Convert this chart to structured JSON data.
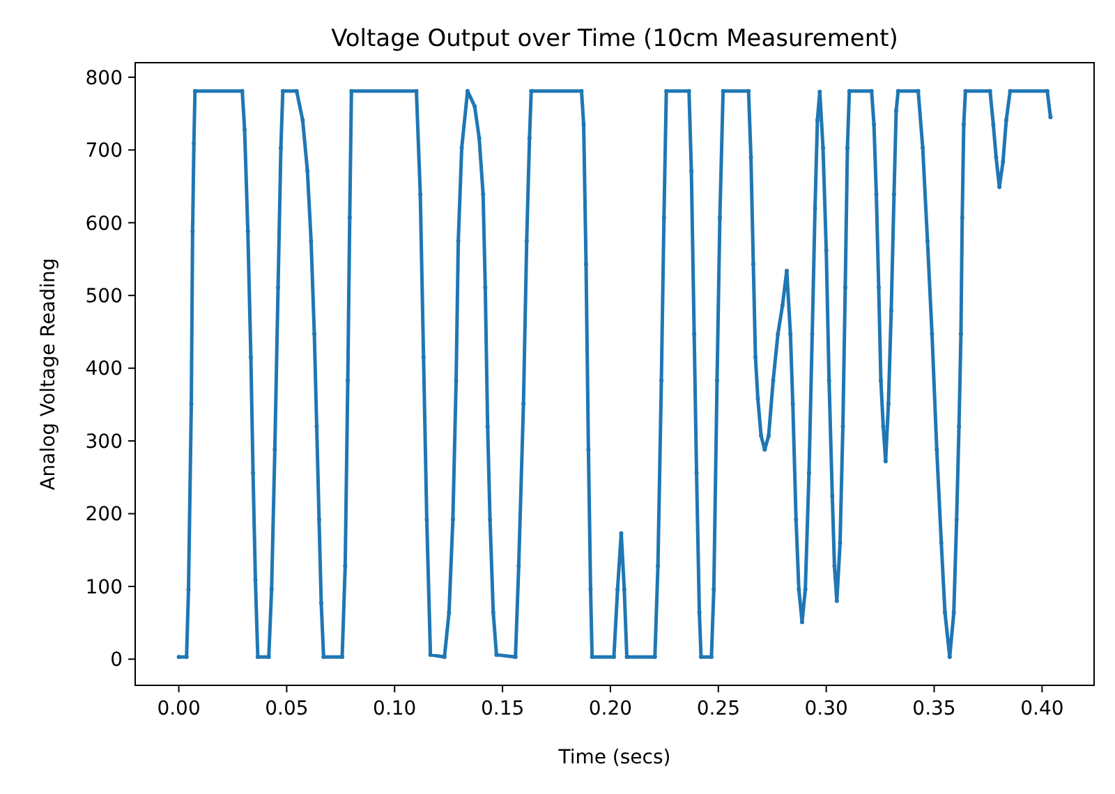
{
  "chart_data": {
    "type": "line",
    "title": "Voltage Output over Time (10cm Measurement)",
    "xlabel": "Time (secs)",
    "ylabel": "Analog Voltage Reading",
    "xlim": [
      -0.0202,
      0.4241
    ],
    "ylim": [
      -36,
      820
    ],
    "xticks": [
      {
        "value": 0,
        "label": "0.00"
      },
      {
        "value": 0.05,
        "label": "0.05"
      },
      {
        "value": 0.1,
        "label": "0.10"
      },
      {
        "value": 0.15,
        "label": "0.15"
      },
      {
        "value": 0.2,
        "label": "0.20"
      },
      {
        "value": 0.25,
        "label": "0.25"
      },
      {
        "value": 0.3,
        "label": "0.30"
      },
      {
        "value": 0.35,
        "label": "0.35"
      },
      {
        "value": 0.4,
        "label": "0.40"
      }
    ],
    "yticks": [
      0,
      100,
      200,
      300,
      400,
      500,
      600,
      700,
      800
    ],
    "marker": "circle",
    "line_style": "solid",
    "grid": false,
    "series": [
      {
        "color": "#1f77b4",
        "x": [
          0,
          0.0036,
          0.0045,
          0.0058,
          0.0064,
          0.007,
          0.0075,
          0.0294,
          0.0305,
          0.032,
          0.0334,
          0.0344,
          0.0355,
          0.0366,
          0.0417,
          0.043,
          0.0445,
          0.046,
          0.0473,
          0.0482,
          0.0546,
          0.0574,
          0.0596,
          0.0613,
          0.0628,
          0.0639,
          0.065,
          0.066,
          0.0671,
          0.0757,
          0.0771,
          0.0783,
          0.0792,
          0.08,
          0.1101,
          0.1119,
          0.1134,
          0.1149,
          0.1166,
          0.1231,
          0.1252,
          0.127,
          0.1285,
          0.1295,
          0.1311,
          0.1338,
          0.1371,
          0.1392,
          0.141,
          0.142,
          0.1431,
          0.1442,
          0.1457,
          0.1472,
          0.156,
          0.1575,
          0.1597,
          0.1612,
          0.1625,
          0.1633,
          0.1866,
          0.1876,
          0.1887,
          0.1898,
          0.1908,
          0.1915,
          0.2016,
          0.2033,
          0.205,
          0.2064,
          0.2076,
          0.2206,
          0.222,
          0.2236,
          0.2248,
          0.2259,
          0.2364,
          0.2375,
          0.2388,
          0.2399,
          0.2412,
          0.242,
          0.2468,
          0.2479,
          0.2494,
          0.2507,
          0.2522,
          0.264,
          0.2651,
          0.2662,
          0.2672,
          0.2683,
          0.2698,
          0.2715,
          0.2733,
          0.2754,
          0.2776,
          0.2797,
          0.2817,
          0.2834,
          0.2845,
          0.286,
          0.2873,
          0.2888,
          0.2903,
          0.292,
          0.2935,
          0.2948,
          0.2959,
          0.297,
          0.2985,
          0.3,
          0.3013,
          0.3028,
          0.3038,
          0.3049,
          0.3064,
          0.3077,
          0.3088,
          0.3098,
          0.3107,
          0.321,
          0.3221,
          0.3232,
          0.3243,
          0.3253,
          0.3264,
          0.3275,
          0.3288,
          0.3301,
          0.3314,
          0.3324,
          0.3333,
          0.3426,
          0.3447,
          0.3469,
          0.349,
          0.3512,
          0.3533,
          0.355,
          0.3572,
          0.3591,
          0.3604,
          0.3615,
          0.3624,
          0.363,
          0.3637,
          0.3645,
          0.3759,
          0.3774,
          0.3787,
          0.3802,
          0.3819,
          0.3834,
          0.3852,
          0.4024,
          0.4039
        ],
        "values": [
          3,
          3,
          96,
          351,
          588,
          709,
          781,
          781,
          728,
          588,
          415,
          256,
          109,
          3,
          3,
          96,
          288,
          511,
          703,
          781,
          781,
          741,
          671,
          575,
          447,
          320,
          192,
          77,
          3,
          3,
          128,
          383,
          607,
          781,
          781,
          639,
          415,
          192,
          6,
          3,
          64,
          192,
          383,
          575,
          703,
          781,
          760,
          716,
          639,
          511,
          320,
          192,
          64,
          6,
          3,
          128,
          351,
          575,
          716,
          781,
          781,
          735,
          543,
          288,
          96,
          3,
          3,
          96,
          173,
          96,
          3,
          3,
          128,
          383,
          607,
          781,
          781,
          671,
          447,
          256,
          64,
          3,
          3,
          96,
          383,
          607,
          781,
          781,
          690,
          543,
          415,
          358,
          307,
          288,
          307,
          383,
          447,
          486,
          534,
          447,
          351,
          192,
          96,
          51,
          96,
          256,
          447,
          620,
          741,
          780,
          703,
          562,
          383,
          224,
          128,
          80,
          160,
          320,
          511,
          703,
          781,
          781,
          735,
          639,
          511,
          383,
          320,
          272,
          351,
          479,
          639,
          754,
          781,
          781,
          703,
          575,
          447,
          288,
          160,
          64,
          3,
          64,
          192,
          320,
          447,
          607,
          735,
          781,
          781,
          735,
          690,
          649,
          684,
          741,
          781,
          781,
          745
        ]
      }
    ]
  }
}
